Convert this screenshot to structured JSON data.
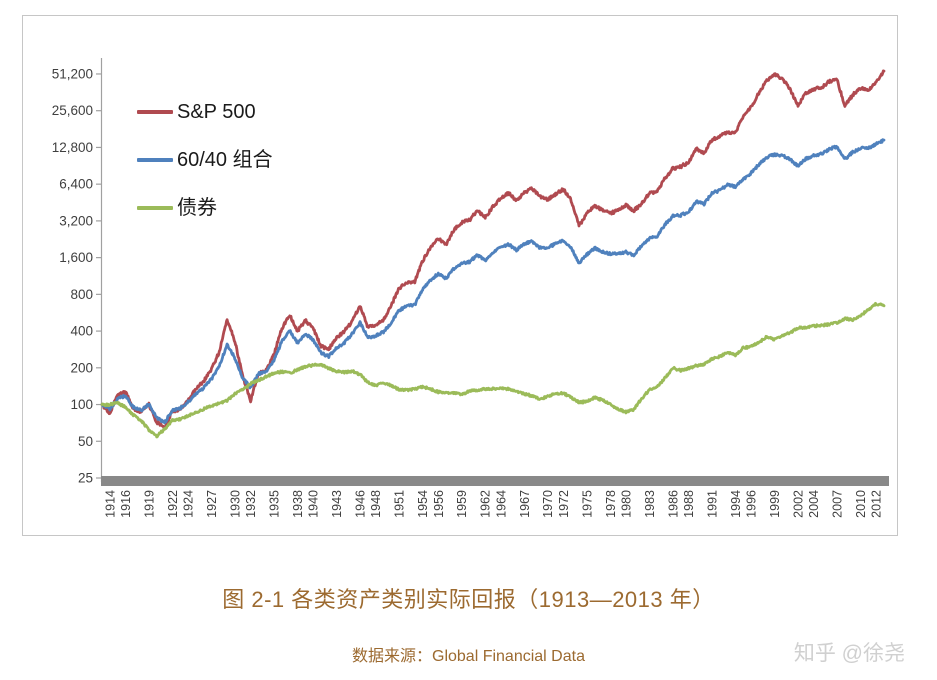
{
  "caption": {
    "title": "图 2-1 各类资产类别实际回报（1913—2013 年）",
    "source": "数据来源：Global Financial Data"
  },
  "watermark": {
    "text": "知乎 @徐尧"
  },
  "colors": {
    "sp500": "#b04a50",
    "portfolio_60_40": "#4f81bd",
    "bonds": "#9bbb59",
    "axis_bar": "#898989",
    "axis_line": "#a0a0a0",
    "frame_border": "#c6c6c6",
    "caption_text": "#9c6a30",
    "watermark_text": "#d0d0d0"
  },
  "chart_data": {
    "type": "line",
    "grid": "off",
    "legend_position": "top-left-inside",
    "y_axis": {
      "scale": "log2",
      "range": [
        25,
        51200
      ],
      "ticks": [
        25,
        50,
        100,
        200,
        400,
        800,
        1600,
        3200,
        6400,
        12800,
        25600,
        51200
      ],
      "tick_labels": [
        "25",
        "50",
        "100",
        "200",
        "400",
        "800",
        "1,600",
        "3,200",
        "6,400",
        "12,800",
        "25,600",
        "51,200"
      ]
    },
    "x_axis": {
      "range": [
        1913,
        2013
      ],
      "tick_labels": [
        "1914",
        "1916",
        "1919",
        "1922",
        "1924",
        "1927",
        "1930",
        "1932",
        "1935",
        "1938",
        "1940",
        "1943",
        "1946",
        "1948",
        "1951",
        "1954",
        "1956",
        "1959",
        "1962",
        "1964",
        "1967",
        "1970",
        "1972",
        "1975",
        "1978",
        "1980",
        "1983",
        "1986",
        "1988",
        "1991",
        "1994",
        "1996",
        "1999",
        "2002",
        "2004",
        "2007",
        "2010",
        "2012"
      ]
    },
    "x": [
      1913,
      1914,
      1915,
      1916,
      1917,
      1918,
      1919,
      1920,
      1921,
      1922,
      1923,
      1924,
      1925,
      1926,
      1927,
      1928,
      1929,
      1930,
      1931,
      1932,
      1933,
      1934,
      1935,
      1936,
      1937,
      1938,
      1939,
      1940,
      1941,
      1942,
      1943,
      1944,
      1945,
      1946,
      1947,
      1948,
      1949,
      1950,
      1951,
      1952,
      1953,
      1954,
      1955,
      1956,
      1957,
      1958,
      1959,
      1960,
      1961,
      1962,
      1963,
      1964,
      1965,
      1966,
      1967,
      1968,
      1969,
      1970,
      1971,
      1972,
      1973,
      1974,
      1975,
      1976,
      1977,
      1978,
      1979,
      1980,
      1981,
      1982,
      1983,
      1984,
      1985,
      1986,
      1987,
      1988,
      1989,
      1990,
      1991,
      1992,
      1993,
      1994,
      1995,
      1996,
      1997,
      1998,
      1999,
      2000,
      2001,
      2002,
      2003,
      2004,
      2005,
      2006,
      2007,
      2008,
      2009,
      2010,
      2011,
      2012,
      2013
    ],
    "series": [
      {
        "name": "S&P 500",
        "color": "#b04a50",
        "values": [
          100,
          85,
          120,
          126,
          93,
          87,
          100,
          72,
          64,
          88,
          92,
          108,
          135,
          155,
          195,
          270,
          500,
          330,
          170,
          108,
          180,
          190,
          260,
          420,
          545,
          400,
          490,
          420,
          300,
          285,
          350,
          400,
          480,
          650,
          430,
          450,
          500,
          650,
          900,
          1000,
          1020,
          1500,
          1950,
          2300,
          2050,
          2700,
          3100,
          3250,
          3900,
          3400,
          4200,
          4900,
          5400,
          4700,
          5500,
          5900,
          5100,
          4800,
          5300,
          5800,
          4700,
          2900,
          3700,
          4300,
          3900,
          3700,
          3900,
          4300,
          3900,
          4400,
          5400,
          5600,
          7200,
          8600,
          8900,
          9700,
          12500,
          11500,
          14800,
          15800,
          17100,
          17000,
          22800,
          27500,
          35800,
          45000,
          50500,
          47000,
          38000,
          28000,
          35500,
          38500,
          39500,
          44500,
          45500,
          28000,
          34500,
          39000,
          38000,
          43500,
          54000
        ]
      },
      {
        "name": "60/40 组合",
        "color": "#4f81bd",
        "values": [
          100,
          92,
          112,
          118,
          95,
          90,
          100,
          78,
          71,
          90,
          93,
          105,
          122,
          137,
          162,
          207,
          310,
          240,
          165,
          138,
          178,
          188,
          230,
          330,
          405,
          320,
          380,
          340,
          265,
          248,
          290,
          320,
          380,
          470,
          355,
          365,
          395,
          470,
          590,
          645,
          655,
          880,
          1050,
          1180,
          1080,
          1300,
          1430,
          1480,
          1680,
          1520,
          1750,
          1950,
          2050,
          1850,
          2080,
          2180,
          1920,
          1930,
          2080,
          2220,
          1920,
          1440,
          1700,
          1920,
          1780,
          1720,
          1730,
          1780,
          1680,
          2000,
          2300,
          2400,
          3000,
          3500,
          3550,
          3800,
          4600,
          4400,
          5400,
          5700,
          6300,
          6100,
          7000,
          7900,
          9300,
          10600,
          11200,
          11000,
          10200,
          9000,
          10300,
          11000,
          11300,
          12400,
          13000,
          10300,
          11700,
          12600,
          12700,
          13600,
          14700
        ]
      },
      {
        "name": "债券",
        "color": "#9bbb59",
        "values": [
          100,
          100,
          103,
          95,
          82,
          74,
          62,
          55,
          63,
          74,
          76,
          81,
          86,
          92,
          98,
          102,
          108,
          122,
          132,
          148,
          158,
          170,
          180,
          186,
          181,
          193,
          205,
          210,
          214,
          198,
          188,
          184,
          188,
          176,
          152,
          144,
          150,
          143,
          132,
          131,
          134,
          140,
          134,
          127,
          126,
          124,
          121,
          129,
          131,
          134,
          135,
          136,
          134,
          129,
          122,
          118,
          111,
          116,
          123,
          124,
          114,
          104,
          106,
          114,
          109,
          100,
          92,
          87,
          91,
          112,
          132,
          140,
          165,
          200,
          190,
          198,
          208,
          213,
          237,
          247,
          270,
          253,
          292,
          297,
          324,
          358,
          342,
          368,
          388,
          424,
          430,
          440,
          447,
          452,
          470,
          508,
          492,
          535,
          600,
          668,
          645
        ]
      }
    ]
  }
}
